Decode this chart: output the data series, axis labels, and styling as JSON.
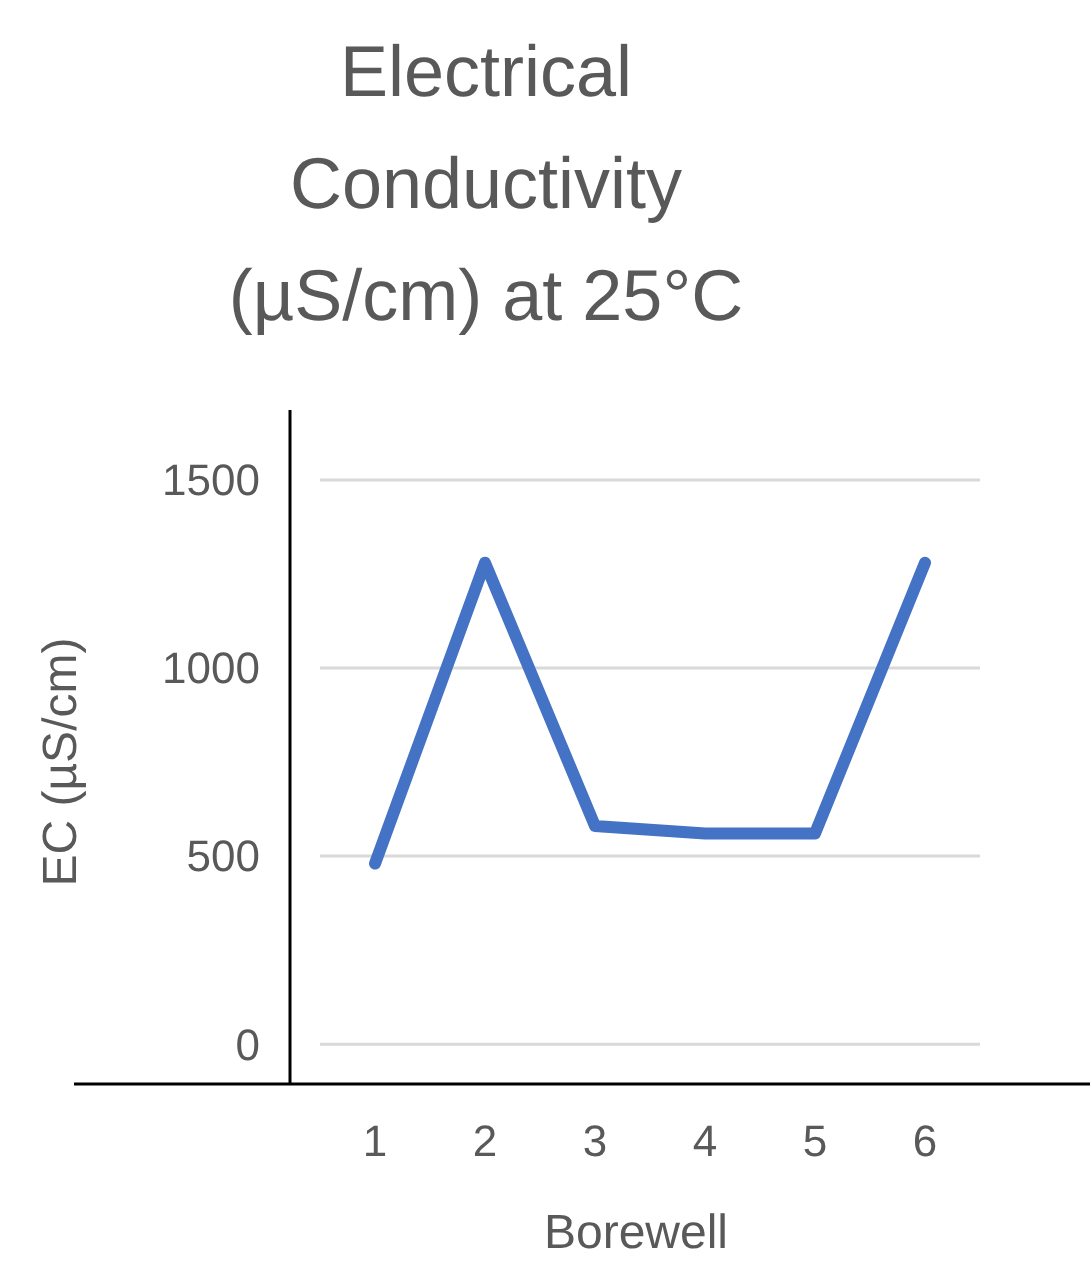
{
  "chart_data": {
    "type": "line",
    "title": "Electrical Conductivity (µS/cm) at 25°C",
    "xlabel": "Borewell",
    "ylabel": "EC (µS/cm)",
    "categories": [
      "1",
      "2",
      "3",
      "4",
      "5",
      "6"
    ],
    "series": [
      {
        "color": "#4472c4",
        "values": [
          480,
          1280,
          580,
          560,
          560,
          1280
        ]
      }
    ],
    "ylim": [
      -106,
      1686
    ],
    "yticks": [
      0,
      500,
      1000,
      1500
    ],
    "grid": "y",
    "marker": "none",
    "line_style": "solid"
  }
}
